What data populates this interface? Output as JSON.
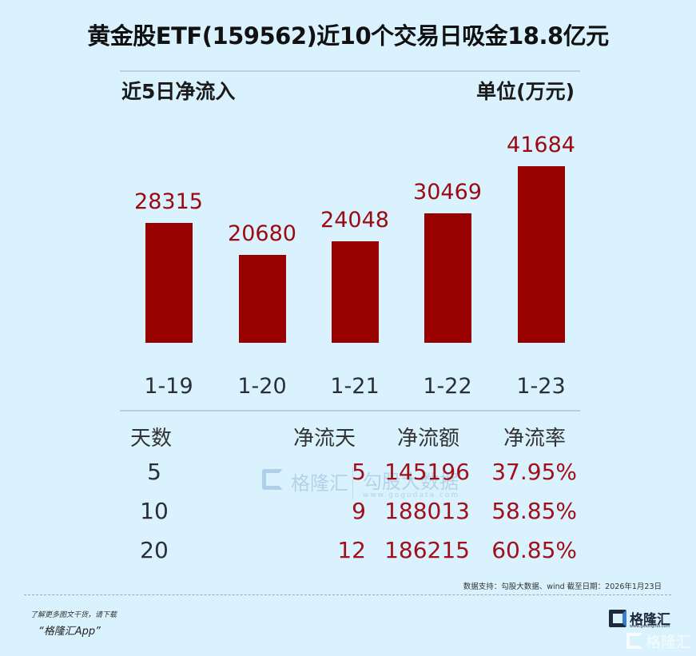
{
  "title": "黄金股ETF(159562)近10个交易日吸金18.8亿元",
  "subtitle_left": "近5日净流入",
  "subtitle_right": "单位(万元)",
  "chart_data": {
    "type": "bar",
    "title": "近5日净流入",
    "ylabel": "单位(万元)",
    "categories": [
      "1-19",
      "1-20",
      "1-21",
      "1-22",
      "1-23"
    ],
    "values": [
      28315,
      20680,
      24048,
      30469,
      41684
    ],
    "labels": [
      "28315",
      "20680",
      "24048",
      "30469",
      "41684"
    ],
    "bar_color": "#990000",
    "label_color": "#9b0a10",
    "grid": false,
    "ylim": [
      0,
      41684
    ]
  },
  "table": {
    "headers": [
      "天数",
      "净流天",
      "净流额",
      "净流率"
    ],
    "rows": [
      {
        "days": "5",
        "net_days": "5",
        "net_amount": "145196",
        "net_rate": "37.95%"
      },
      {
        "days": "10",
        "net_days": "9",
        "net_amount": "188013",
        "net_rate": "58.85%"
      },
      {
        "days": "20",
        "net_days": "12",
        "net_amount": "186215",
        "net_rate": "60.85%"
      }
    ]
  },
  "watermark": {
    "brand": "格隆汇",
    "data_brand": "勾股大数据",
    "data_url": "www.gogudata.com"
  },
  "source_note": "数据支持：勾股大数据、wind  截至日期：2026年1月23日",
  "footer": {
    "promo_line1": "了解更多图文干货，请下载",
    "promo_line2": "“格隆汇App”",
    "logo_text": "格隆汇",
    "logo_url": "www.gelonghui.com",
    "logo_watermark": "格隆汇"
  }
}
